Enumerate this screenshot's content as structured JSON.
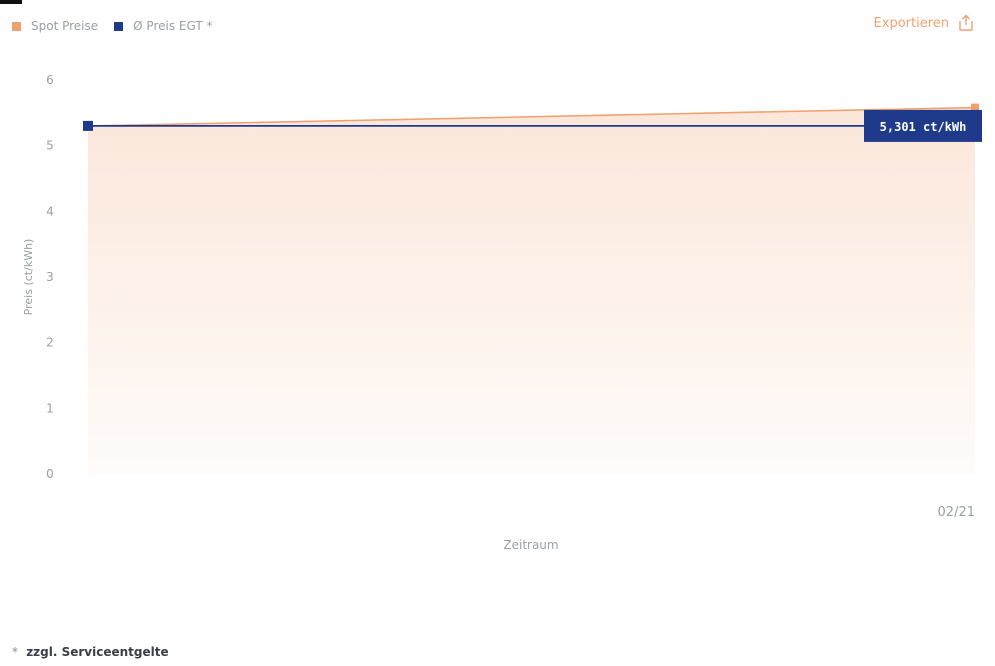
{
  "legend": {
    "spot_label": "Spot Preise",
    "avg_label": "Ø Preis EGT *"
  },
  "export": {
    "label": "Exportieren",
    "icon": "share-export-icon"
  },
  "footnote": {
    "bullet": "*",
    "text": "zzgl. Serviceentgelte"
  },
  "colors": {
    "spot": "#f0a171",
    "spot_fill": "#fbe7da",
    "avg": "#1f3a8a",
    "tooltip_bg": "#1f3a8a",
    "axis_text": "#9aa0a6"
  },
  "chart_data": {
    "type": "line",
    "x": [
      "",
      "02/21"
    ],
    "series": [
      {
        "name": "Spot Preise",
        "values": [
          5.3,
          5.58
        ],
        "area": true
      },
      {
        "name": "Ø Preis EGT *",
        "values": [
          5.301,
          5.301
        ]
      }
    ],
    "xlabel": "Zeitraum",
    "ylabel": "Preis (ct/kWh)",
    "ylim": [
      0,
      6
    ],
    "yticks": [
      "0",
      "1",
      "2",
      "3",
      "4",
      "5",
      "6"
    ],
    "xtick_labels": [
      "02/21"
    ],
    "tooltip": "5,301 ct/kWh",
    "grid": false,
    "legend": "top-left"
  }
}
